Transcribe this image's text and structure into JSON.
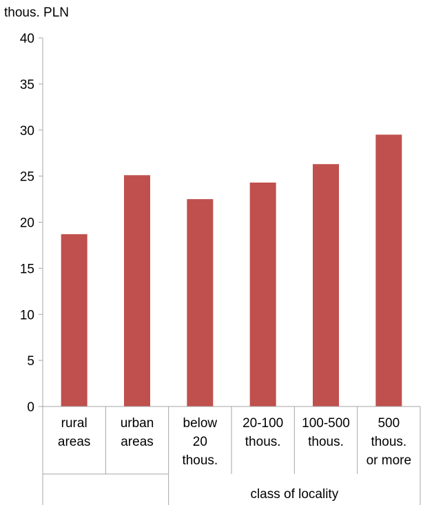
{
  "chart_data": {
    "type": "bar",
    "unit_label": "thous. PLN",
    "xlabel": "",
    "ylabel": "",
    "ylim": [
      0,
      40
    ],
    "yticks": [
      0,
      5,
      10,
      15,
      20,
      25,
      30,
      35,
      40
    ],
    "grid": false,
    "legend": "none",
    "bar_color": "#c0504d",
    "categories": [
      [
        "rural",
        "areas"
      ],
      [
        "urban",
        "areas"
      ],
      [
        "below",
        "20",
        "thous."
      ],
      [
        "20-100",
        "thous."
      ],
      [
        "100-500",
        "thous."
      ],
      [
        "500",
        "thous.",
        "or more"
      ]
    ],
    "values": [
      18.7,
      25.1,
      22.5,
      24.3,
      26.3,
      29.5
    ],
    "group_label": "class of locality"
  }
}
